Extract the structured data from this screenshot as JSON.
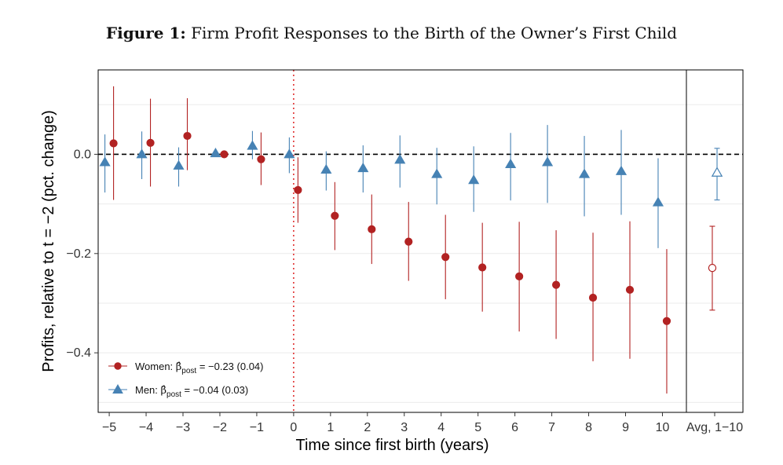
{
  "figure": {
    "prefix": "Figure 1:",
    "title": "Firm Profit Responses to the Birth of the Owner’s First Child"
  },
  "chart_data": {
    "type": "scatter",
    "xlabel": "Time since first birth (years)",
    "ylabel": "Profits, relative to t = −2 (pct. change)",
    "ylim": [
      -0.52,
      0.17
    ],
    "yticks": [
      0.0,
      -0.2,
      -0.4
    ],
    "ytick_labels": [
      "0.0",
      "−0.2",
      "−0.4"
    ],
    "xticks": [
      -5,
      -4,
      -3,
      -2,
      -1,
      0,
      1,
      2,
      3,
      4,
      5,
      6,
      7,
      8,
      9,
      10
    ],
    "xtick_labels": [
      "−5",
      "−4",
      "−3",
      "−2",
      "−1",
      "0",
      "1",
      "2",
      "3",
      "4",
      "5",
      "6",
      "7",
      "8",
      "9",
      "10"
    ],
    "avg_label": "Avg, 1−10",
    "reference_line_y": 0,
    "event_line_x": 0,
    "grid": true,
    "legend_position": "bottom-left",
    "colors": {
      "women": "#b22222",
      "men": "#4682b4",
      "reference": "#000000",
      "event_line": "#e03030"
    },
    "series": [
      {
        "name": "Women",
        "legend_prefix": "Women: ",
        "legend_value": " = −0.23 (0.04)",
        "marker": "circle",
        "x": [
          -5,
          -4,
          -3,
          -2,
          -1,
          0,
          1,
          2,
          3,
          4,
          5,
          6,
          7,
          8,
          9,
          10
        ],
        "y": [
          0.022,
          0.023,
          0.037,
          0.0,
          -0.01,
          -0.072,
          -0.124,
          -0.151,
          -0.176,
          -0.207,
          -0.228,
          -0.246,
          -0.263,
          -0.289,
          -0.273,
          -0.336
        ],
        "ci_low": [
          -0.092,
          -0.065,
          -0.032,
          0.0,
          -0.062,
          -0.138,
          -0.193,
          -0.221,
          -0.255,
          -0.292,
          -0.317,
          -0.357,
          -0.372,
          -0.417,
          -0.412,
          -0.482
        ],
        "ci_high": [
          0.137,
          0.112,
          0.113,
          0.0,
          0.044,
          -0.006,
          -0.056,
          -0.081,
          -0.096,
          -0.122,
          -0.138,
          -0.136,
          -0.153,
          -0.158,
          -0.135,
          -0.191
        ],
        "avg": {
          "y": -0.229,
          "ci_low": -0.314,
          "ci_high": -0.145
        }
      },
      {
        "name": "Men",
        "legend_prefix": "Men: ",
        "legend_value": " = −0.04 (0.03)",
        "marker": "triangle",
        "x": [
          -5,
          -4,
          -3,
          -2,
          -1,
          0,
          1,
          2,
          3,
          4,
          5,
          6,
          7,
          8,
          9,
          10
        ],
        "y": [
          -0.016,
          0.0,
          -0.023,
          0.002,
          0.017,
          0.0,
          -0.031,
          -0.028,
          -0.011,
          -0.04,
          -0.052,
          -0.02,
          -0.016,
          -0.04,
          -0.034,
          -0.097
        ],
        "ci_low": [
          -0.077,
          -0.05,
          -0.065,
          0.002,
          -0.01,
          -0.038,
          -0.073,
          -0.077,
          -0.067,
          -0.101,
          -0.116,
          -0.093,
          -0.098,
          -0.125,
          -0.122,
          -0.189
        ],
        "ci_high": [
          0.04,
          0.046,
          0.014,
          0.002,
          0.047,
          0.034,
          0.006,
          0.018,
          0.038,
          0.013,
          0.016,
          0.043,
          0.059,
          0.037,
          0.049,
          -0.008
        ],
        "avg": {
          "y": -0.037,
          "ci_low": -0.092,
          "ci_high": 0.012
        }
      }
    ]
  }
}
